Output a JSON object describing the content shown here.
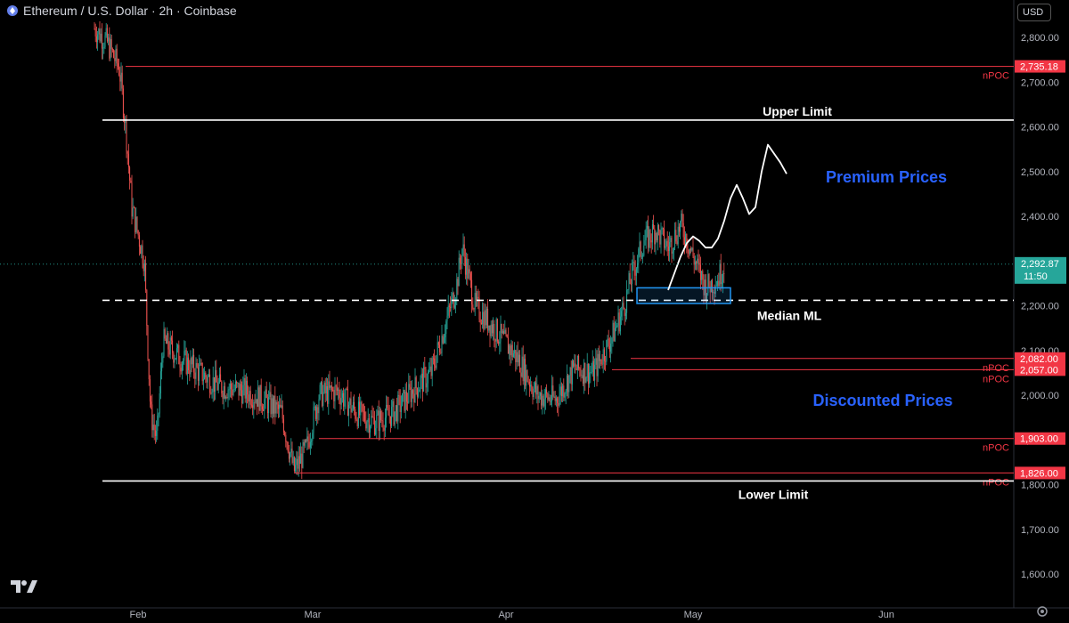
{
  "header": {
    "title": "Ethereum / U.S. Dollar · 2h · Coinbase",
    "currency": "USD"
  },
  "colors": {
    "background": "#000000",
    "up": "#26a69a",
    "down": "#ef5350",
    "npoc": "#f23645",
    "limit": "#ffffff",
    "zone_text": "#2962ff",
    "box": "#2196f3",
    "current": "#26a69a"
  },
  "chart_data": {
    "type": "candlestick",
    "ylim": [
      1550,
      2860
    ],
    "yticks": [
      "2,800.00",
      "2,700.00",
      "2,600.00",
      "2,500.00",
      "2,400.00",
      "2,300.00",
      "2,200.00",
      "2,100.00",
      "2,000.00",
      "1,900.00",
      "1,800.00",
      "1,700.00",
      "1,600.00"
    ],
    "ytick_values": [
      2800,
      2700,
      2600,
      2500,
      2400,
      2300,
      2200,
      2100,
      2000,
      1900,
      1800,
      1700,
      1600
    ],
    "xticks": [
      "Feb",
      "Mar",
      "Apr",
      "May",
      "Jun"
    ],
    "xtick_dates": [
      "2025-02-01",
      "2025-03-01",
      "2025-04-01",
      "2025-05-01",
      "2025-06-01"
    ],
    "current_price": {
      "value": 2292.87,
      "label": "2,292.87",
      "countdown": "11:50"
    },
    "price_path": [
      [
        "2025-01-25",
        2820
      ],
      [
        "2025-01-27",
        2790
      ],
      [
        "2025-01-29",
        2730
      ],
      [
        "2025-01-30",
        2600
      ],
      [
        "2025-01-31",
        2420
      ],
      [
        "2025-02-02",
        2300
      ],
      [
        "2025-02-03",
        1960
      ],
      [
        "2025-02-04",
        1900
      ],
      [
        "2025-02-05",
        2120
      ],
      [
        "2025-02-08",
        2080
      ],
      [
        "2025-02-11",
        2050
      ],
      [
        "2025-02-14",
        2020
      ],
      [
        "2025-02-18",
        2010
      ],
      [
        "2025-02-21",
        1990
      ],
      [
        "2025-02-24",
        1960
      ],
      [
        "2025-02-26",
        1830
      ],
      [
        "2025-02-28",
        1880
      ],
      [
        "2025-03-02",
        2000
      ],
      [
        "2025-03-05",
        2010
      ],
      [
        "2025-03-08",
        1960
      ],
      [
        "2025-03-11",
        1940
      ],
      [
        "2025-03-14",
        1960
      ],
      [
        "2025-03-17",
        2010
      ],
      [
        "2025-03-20",
        2050
      ],
      [
        "2025-03-24",
        2240
      ],
      [
        "2025-03-25",
        2330
      ],
      [
        "2025-03-27",
        2200
      ],
      [
        "2025-03-30",
        2150
      ],
      [
        "2025-04-03",
        2080
      ],
      [
        "2025-04-06",
        2000
      ],
      [
        "2025-04-09",
        1990
      ],
      [
        "2025-04-12",
        2060
      ],
      [
        "2025-04-15",
        2050
      ],
      [
        "2025-04-18",
        2130
      ],
      [
        "2025-04-20",
        2200
      ],
      [
        "2025-04-21",
        2260
      ],
      [
        "2025-04-23",
        2340
      ],
      [
        "2025-04-25",
        2370
      ],
      [
        "2025-04-27",
        2330
      ],
      [
        "2025-04-29",
        2380
      ],
      [
        "2025-04-30",
        2350
      ],
      [
        "2025-05-01",
        2310
      ],
      [
        "2025-05-03",
        2240
      ],
      [
        "2025-05-05",
        2260
      ],
      [
        "2025-05-06",
        2292.87
      ]
    ],
    "npoc_levels": [
      {
        "value": 2735.18,
        "label": "2,735.18",
        "tag": "nPOC",
        "from": "2025-01-30"
      },
      {
        "value": 2082.0,
        "label": "2,082.00",
        "tag": "nPOC",
        "from": "2025-04-21"
      },
      {
        "value": 2057.0,
        "label": "2,057.00",
        "tag": "nPOC",
        "from": "2025-04-18"
      },
      {
        "value": 1903.0,
        "label": "1,903.00",
        "tag": "nPOC",
        "from": "2025-03-02"
      },
      {
        "value": 1826.0,
        "label": "1,826.00",
        "tag": "nPOC",
        "from": "2025-02-26"
      }
    ],
    "limits": [
      {
        "value": 2615,
        "label": "Upper Limit"
      },
      {
        "value": 1808,
        "label": "Lower Limit"
      }
    ],
    "median": {
      "value": 2212,
      "label": "Median ML"
    },
    "zones": [
      {
        "label": "Premium Prices",
        "value": 2490
      },
      {
        "label": "Discounted Prices",
        "value": 1990
      }
    ],
    "box": {
      "from": "2025-04-22",
      "to": "2025-05-07",
      "low": 2205,
      "high": 2240
    },
    "projection": [
      [
        "2025-04-27",
        2235
      ],
      [
        "2025-04-29",
        2310
      ],
      [
        "2025-04-30",
        2340
      ],
      [
        "2025-05-01",
        2355
      ],
      [
        "2025-05-02",
        2345
      ],
      [
        "2025-05-03",
        2330
      ],
      [
        "2025-05-04",
        2330
      ],
      [
        "2025-05-05",
        2350
      ],
      [
        "2025-05-06",
        2390
      ],
      [
        "2025-05-07",
        2440
      ],
      [
        "2025-05-08",
        2470
      ],
      [
        "2025-05-09",
        2440
      ],
      [
        "2025-05-10",
        2405
      ],
      [
        "2025-05-11",
        2420
      ],
      [
        "2025-05-12",
        2500
      ],
      [
        "2025-05-13",
        2560
      ],
      [
        "2025-05-15",
        2520
      ],
      [
        "2025-05-16",
        2495
      ]
    ]
  }
}
